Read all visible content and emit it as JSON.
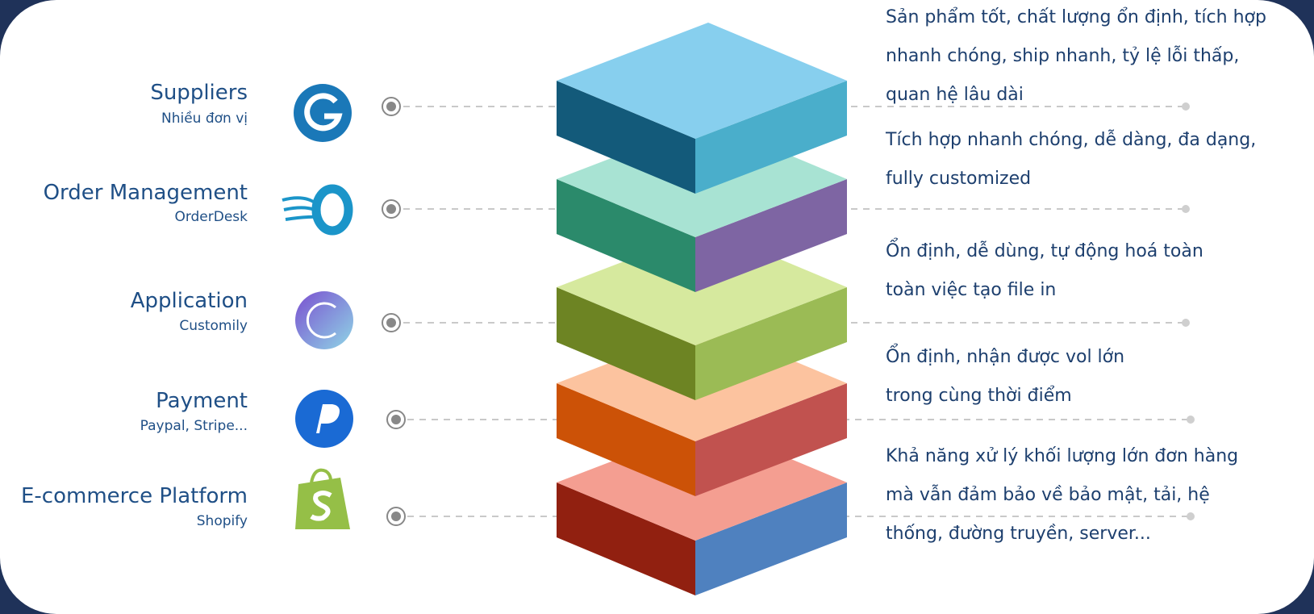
{
  "layers": [
    {
      "title": "Suppliers",
      "subtitle": "Nhiều đơn vị",
      "description": "Sản phẩm tốt, chất lượng ổn định, tích hợp nhanh chóng, ship nhanh, tỷ lệ lỗi thấp, quan hệ lâu dài"
    },
    {
      "title": "Order Management",
      "subtitle": "OrderDesk",
      "description": "Tích hợp nhanh chóng, dễ dàng, đa dạng, fully customized"
    },
    {
      "title": "Application",
      "subtitle": "Customily",
      "description": "Ổn định, dễ dùng, tự động hoá toàn toàn việc tạo file in"
    },
    {
      "title": "Payment",
      "subtitle": "Paypal, Stripe...",
      "description": "Ổn định, nhận được vol lớn trong cùng thời điểm"
    },
    {
      "title": "E-commerce Platform",
      "subtitle": "Shopify",
      "description": "Khả năng xử lý khối lượng lớn đơn hàng mà vẫn đảm bảo về bảo mật, tải, hệ thống, đường truyền, server..."
    }
  ]
}
